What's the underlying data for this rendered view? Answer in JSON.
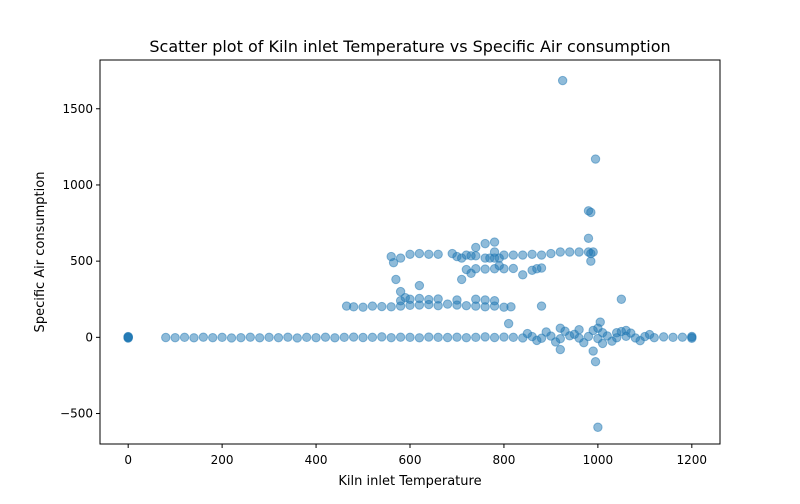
{
  "chart_data": {
    "type": "scatter",
    "title": "Scatter plot of Kiln inlet Temperature vs Specific Air consumption",
    "xlabel": "Kiln inlet Temperature",
    "ylabel": "Specific Air consumption",
    "xlim": [
      -60,
      1260
    ],
    "ylim": [
      -700,
      1820
    ],
    "xticks": [
      0,
      200,
      400,
      600,
      800,
      1000,
      1200
    ],
    "yticks": [
      -500,
      0,
      500,
      1000,
      1500
    ],
    "xtick_labels": [
      "0",
      "200",
      "400",
      "600",
      "800",
      "1000",
      "1200"
    ],
    "ytick_labels": [
      "−500",
      "0",
      "500",
      "1000",
      "1500"
    ],
    "grid": false,
    "legend": "none",
    "marker_color": "#1f77b4",
    "marker_alpha": 0.5,
    "series": [
      {
        "points": [
          [
            0,
            0
          ],
          [
            0,
            3
          ],
          [
            0,
            -3
          ],
          [
            0,
            5
          ],
          [
            0,
            -5
          ],
          [
            80,
            -1
          ],
          [
            100,
            -2
          ],
          [
            120,
            0
          ],
          [
            140,
            -3
          ],
          [
            160,
            1
          ],
          [
            180,
            -2
          ],
          [
            200,
            0
          ],
          [
            220,
            -4
          ],
          [
            240,
            -2
          ],
          [
            260,
            1
          ],
          [
            280,
            -3
          ],
          [
            300,
            0
          ],
          [
            320,
            -2
          ],
          [
            340,
            1
          ],
          [
            360,
            -4
          ],
          [
            380,
            0
          ],
          [
            400,
            -2
          ],
          [
            420,
            1
          ],
          [
            440,
            -3
          ],
          [
            460,
            0
          ],
          [
            480,
            2
          ],
          [
            500,
            -1
          ],
          [
            520,
            0
          ],
          [
            540,
            3
          ],
          [
            560,
            -2
          ],
          [
            580,
            1
          ],
          [
            600,
            0
          ],
          [
            620,
            -3
          ],
          [
            640,
            2
          ],
          [
            660,
            0
          ],
          [
            680,
            -1
          ],
          [
            700,
            1
          ],
          [
            720,
            -2
          ],
          [
            740,
            0
          ],
          [
            760,
            3
          ],
          [
            780,
            -1
          ],
          [
            800,
            2
          ],
          [
            820,
            0
          ],
          [
            840,
            -4
          ],
          [
            860,
            5
          ],
          [
            880,
            -6
          ],
          [
            900,
            8
          ],
          [
            920,
            -9
          ],
          [
            940,
            10
          ],
          [
            960,
            -5
          ],
          [
            980,
            6
          ],
          [
            1000,
            -8
          ],
          [
            1020,
            9
          ],
          [
            1040,
            -3
          ],
          [
            1060,
            7
          ],
          [
            1080,
            -4
          ],
          [
            1100,
            5
          ],
          [
            1120,
            -2
          ],
          [
            1140,
            3
          ],
          [
            1160,
            0
          ],
          [
            1180,
            1
          ],
          [
            1200,
            0
          ],
          [
            1200,
            6
          ],
          [
            1200,
            -6
          ],
          [
            850,
            25
          ],
          [
            870,
            -20
          ],
          [
            890,
            35
          ],
          [
            910,
            -30
          ],
          [
            930,
            40
          ],
          [
            950,
            20
          ],
          [
            970,
            -35
          ],
          [
            990,
            45
          ],
          [
            1010,
            30
          ],
          [
            1030,
            -25
          ],
          [
            1050,
            38
          ],
          [
            1070,
            28
          ],
          [
            1090,
            -22
          ],
          [
            1110,
            18
          ],
          [
            1000,
            60
          ],
          [
            1010,
            -40
          ],
          [
            960,
            50
          ],
          [
            1060,
            45
          ],
          [
            465,
            205
          ],
          [
            480,
            200
          ],
          [
            500,
            198
          ],
          [
            520,
            205
          ],
          [
            540,
            202
          ],
          [
            560,
            200
          ],
          [
            580,
            205
          ],
          [
            600,
            210
          ],
          [
            620,
            212
          ],
          [
            640,
            215
          ],
          [
            660,
            208
          ],
          [
            680,
            218
          ],
          [
            700,
            212
          ],
          [
            720,
            208
          ],
          [
            740,
            205
          ],
          [
            760,
            200
          ],
          [
            780,
            205
          ],
          [
            800,
            198
          ],
          [
            815,
            200
          ],
          [
            580,
            240
          ],
          [
            600,
            250
          ],
          [
            620,
            255
          ],
          [
            640,
            248
          ],
          [
            660,
            252
          ],
          [
            700,
            245
          ],
          [
            740,
            250
          ],
          [
            760,
            245
          ],
          [
            780,
            240
          ],
          [
            560,
            530
          ],
          [
            565,
            490
          ],
          [
            570,
            380
          ],
          [
            580,
            300
          ],
          [
            590,
            260
          ],
          [
            580,
            520
          ],
          [
            600,
            545
          ],
          [
            620,
            550
          ],
          [
            640,
            545
          ],
          [
            660,
            545
          ],
          [
            690,
            550
          ],
          [
            700,
            530
          ],
          [
            710,
            520
          ],
          [
            720,
            540
          ],
          [
            730,
            535
          ],
          [
            740,
            535
          ],
          [
            760,
            520
          ],
          [
            770,
            520
          ],
          [
            780,
            520
          ],
          [
            790,
            520
          ],
          [
            800,
            540
          ],
          [
            820,
            540
          ],
          [
            840,
            540
          ],
          [
            860,
            545
          ],
          [
            880,
            540
          ],
          [
            900,
            550
          ],
          [
            920,
            560
          ],
          [
            940,
            560
          ],
          [
            960,
            560
          ],
          [
            980,
            560
          ],
          [
            990,
            560
          ],
          [
            720,
            445
          ],
          [
            740,
            450
          ],
          [
            760,
            448
          ],
          [
            780,
            450
          ],
          [
            800,
            450
          ],
          [
            820,
            452
          ],
          [
            840,
            410
          ],
          [
            860,
            440
          ],
          [
            870,
            450
          ],
          [
            880,
            455
          ],
          [
            730,
            420
          ],
          [
            710,
            380
          ],
          [
            790,
            470
          ],
          [
            760,
            615
          ],
          [
            780,
            625
          ],
          [
            740,
            590
          ],
          [
            780,
            560
          ],
          [
            620,
            340
          ],
          [
            810,
            90
          ],
          [
            880,
            205
          ],
          [
            920,
            -80
          ],
          [
            920,
            60
          ],
          [
            990,
            -90
          ],
          [
            995,
            -160
          ],
          [
            1000,
            -590
          ],
          [
            1005,
            100
          ],
          [
            1050,
            250
          ],
          [
            1040,
            30
          ],
          [
            980,
            830
          ],
          [
            985,
            820
          ],
          [
            980,
            650
          ],
          [
            985,
            550
          ],
          [
            985,
            500
          ],
          [
            995,
            1170
          ],
          [
            925,
            1685
          ]
        ]
      }
    ]
  }
}
